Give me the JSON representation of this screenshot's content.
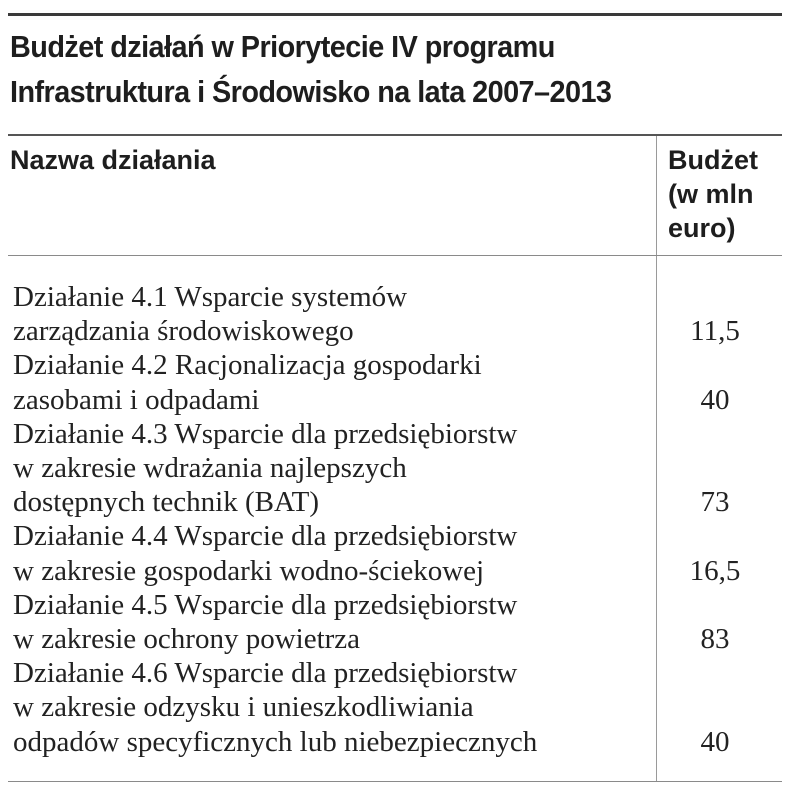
{
  "title": {
    "line1": "Budżet działań w Priorytecie IV programu",
    "line2": "Infrastruktura i Środowisko na lata 2007–2013"
  },
  "table": {
    "headers": {
      "name": "Nazwa działania",
      "budget_line1": "Budżet",
      "budget_line2": "(w mln",
      "budget_line3": "euro)"
    },
    "rows": [
      {
        "name_lines": [
          "Działanie 4.1 Wsparcie systemów",
          "zarządzania środowiskowego"
        ],
        "budget": "11,5"
      },
      {
        "name_lines": [
          "Działanie 4.2 Racjonalizacja gospodarki",
          "zasobami i odpadami"
        ],
        "budget": "40"
      },
      {
        "name_lines": [
          "Działanie 4.3 Wsparcie dla przedsiębiorstw",
          "w zakresie wdrażania najlepszych",
          "dostępnych technik (BAT)"
        ],
        "budget": "73"
      },
      {
        "name_lines": [
          "Działanie 4.4 Wsparcie dla przedsiębiorstw",
          "w zakresie gospodarki wodno-ściekowej"
        ],
        "budget": "16,5"
      },
      {
        "name_lines": [
          "Działanie 4.5 Wsparcie dla przedsiębiorstw",
          "w zakresie ochrony powietrza"
        ],
        "budget": "83"
      },
      {
        "name_lines": [
          "Działanie 4.6 Wsparcie dla przedsiębiorstw",
          "w zakresie odzysku i unieszkodliwiania",
          "odpadów specyficznych lub niebezpiecznych"
        ],
        "budget": "40"
      }
    ]
  }
}
